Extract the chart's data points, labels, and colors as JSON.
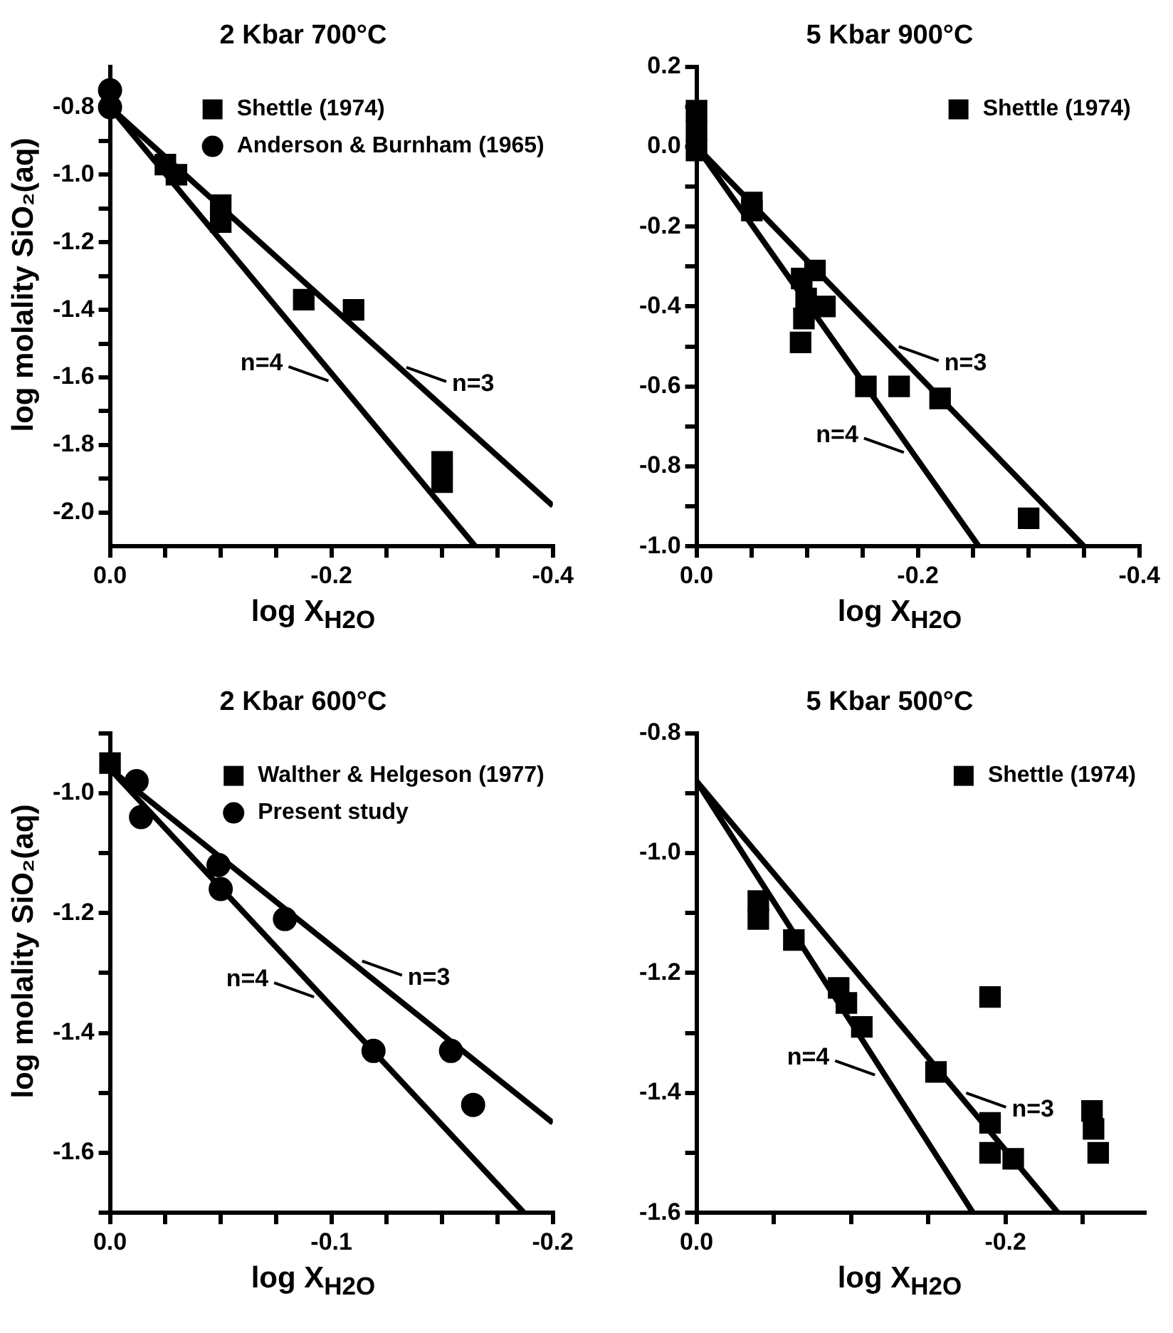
{
  "chart_data": [
    {
      "type": "scatter",
      "title": "2 Kbar 700°C",
      "xlabel": "log X$_{H2O}$",
      "ylabel": "log molality SiO₂(aq)",
      "legend": "top right",
      "xlim": [
        0,
        -0.4
      ],
      "ylim": [
        -2.1,
        -0.68
      ],
      "xticks": [
        {
          "value": 0,
          "label": "0.0"
        },
        {
          "value": -0.05,
          "label": null
        },
        {
          "value": -0.1,
          "label": null
        },
        {
          "value": -0.15,
          "label": null
        },
        -0.2,
        {
          "value": -0.25,
          "label": null
        },
        {
          "value": -0.3,
          "label": null
        },
        {
          "value": -0.35,
          "label": null
        },
        -0.4
      ],
      "yticks": [
        -0.8,
        {
          "value": -0.9,
          "label": null
        },
        {
          "value": -1.0,
          "label": "-1.0"
        },
        {
          "value": -1.1,
          "label": null
        },
        -1.2,
        {
          "value": -1.3,
          "label": null
        },
        -1.4,
        {
          "value": -1.5,
          "label": null
        },
        -1.6,
        {
          "value": -1.7,
          "label": null
        },
        -1.8,
        {
          "value": -1.9,
          "label": null
        },
        {
          "value": -2.0,
          "label": "-2.0"
        }
      ],
      "series": [
        {
          "type": "scatter",
          "name": "Shettle (1974)",
          "marker": "square",
          "color": "#000000",
          "x": [
            -0.05,
            -0.06,
            -0.1,
            -0.1,
            -0.175,
            -0.22,
            -0.3,
            -0.3
          ],
          "values": [
            -0.97,
            -1.0,
            -1.09,
            -1.14,
            -1.37,
            -1.4,
            -1.85,
            -1.91
          ]
        },
        {
          "type": "scatter",
          "name": "Anderson & Burnham (1965)",
          "marker": "circle",
          "color": "#000000",
          "x": [
            0,
            0
          ],
          "values": [
            -0.75,
            -0.8
          ]
        },
        {
          "type": "line",
          "color": "#000000",
          "x": [
            0,
            -0.4
          ],
          "values": [
            -0.8,
            -1.98
          ]
        },
        {
          "type": "line",
          "color": "#000000",
          "x": [
            0,
            -0.33
          ],
          "values": [
            -0.8,
            -2.1
          ]
        }
      ],
      "annotations": [
        {
          "text": "n=3",
          "x": -0.26,
          "y": -1.57
        },
        {
          "text": "n=4",
          "x": -0.205,
          "y": -1.61
        }
      ]
    },
    {
      "type": "scatter",
      "title": "5 Kbar 900°C",
      "xlabel": "log X$_{H2O}$",
      "legend": "top right",
      "xlim": [
        0,
        -0.4
      ],
      "ylim": [
        -1.0,
        0.2
      ],
      "xticks": [
        {
          "value": 0,
          "label": "0.0"
        },
        {
          "value": -0.05,
          "label": null
        },
        {
          "value": -0.1,
          "label": null
        },
        {
          "value": -0.15,
          "label": null
        },
        -0.2,
        {
          "value": -0.25,
          "label": null
        },
        {
          "value": -0.3,
          "label": null
        },
        {
          "value": -0.35,
          "label": null
        },
        -0.4
      ],
      "yticks": [
        0.2,
        {
          "value": 0.1,
          "label": null
        },
        {
          "value": 0,
          "label": "0.0"
        },
        {
          "value": -0.1,
          "label": null
        },
        -0.2,
        {
          "value": -0.3,
          "label": null
        },
        -0.4,
        {
          "value": -0.5,
          "label": null
        },
        -0.6,
        {
          "value": -0.7,
          "label": null
        },
        -0.8,
        {
          "value": -0.9,
          "label": null
        },
        {
          "value": -1.0,
          "label": "-1.0"
        }
      ],
      "series": [
        {
          "type": "scatter",
          "name": "Shettle (1974)",
          "marker": "square",
          "color": "#000000",
          "x": [
            0,
            0,
            0,
            -0.05,
            -0.05,
            -0.095,
            -0.107,
            -0.099,
            -0.116,
            -0.097,
            -0.094,
            -0.153,
            -0.183,
            -0.22,
            -0.3
          ],
          "values": [
            0.09,
            0.04,
            -0.01,
            -0.14,
            -0.16,
            -0.33,
            -0.31,
            -0.38,
            -0.4,
            -0.43,
            -0.49,
            -0.6,
            -0.6,
            -0.63,
            -0.93
          ]
        },
        {
          "type": "line",
          "color": "#000000",
          "x": [
            0,
            -0.35
          ],
          "values": [
            0,
            -1.0
          ]
        },
        {
          "type": "line",
          "color": "#000000",
          "x": [
            0,
            -0.255
          ],
          "values": [
            0,
            -1.0
          ]
        }
      ],
      "annotations": [
        {
          "text": "n=3",
          "x": -0.175,
          "y": -0.5
        },
        {
          "text": "n=4",
          "x": -0.195,
          "y": -0.765
        }
      ]
    },
    {
      "type": "scatter",
      "title": "2 Kbar 600°C",
      "xlabel": "log X$_{H2O}$",
      "ylabel": "log molality SiO₂(aq)",
      "legend": "top right",
      "xlim": [
        0,
        -0.2
      ],
      "ylim": [
        -1.7,
        -0.9
      ],
      "xticks": [
        {
          "value": 0,
          "label": "0.0"
        },
        {
          "value": -0.025,
          "label": null
        },
        {
          "value": -0.05,
          "label": null
        },
        {
          "value": -0.075,
          "label": null
        },
        -0.1,
        {
          "value": -0.125,
          "label": null
        },
        {
          "value": -0.15,
          "label": null
        },
        {
          "value": -0.175,
          "label": null
        },
        -0.2
      ],
      "yticks": [
        {
          "value": -0.9,
          "label": null
        },
        {
          "value": -1.0,
          "label": "-1.0"
        },
        {
          "value": -1.1,
          "label": null
        },
        -1.2,
        {
          "value": -1.3,
          "label": null
        },
        -1.4,
        {
          "value": -1.5,
          "label": null
        },
        -1.6,
        {
          "value": -1.7,
          "label": null
        }
      ],
      "series": [
        {
          "type": "scatter",
          "name": "Walther & Helgeson (1977)",
          "marker": "square",
          "color": "#000000",
          "x": [
            0
          ],
          "values": [
            -0.95
          ]
        },
        {
          "type": "scatter",
          "name": "Present study",
          "marker": "circle",
          "color": "#000000",
          "x": [
            -0.012,
            -0.014,
            -0.049,
            -0.05,
            -0.079,
            -0.119,
            -0.154,
            -0.164
          ],
          "values": [
            -0.98,
            -1.04,
            -1.12,
            -1.16,
            -1.21,
            -1.43,
            -1.43,
            -1.52
          ]
        },
        {
          "type": "line",
          "color": "#000000",
          "x": [
            0,
            -0.2
          ],
          "values": [
            -0.96,
            -1.55
          ]
        },
        {
          "type": "line",
          "color": "#000000",
          "x": [
            0,
            -0.187
          ],
          "values": [
            -0.96,
            -1.7
          ]
        }
      ],
      "annotations": [
        {
          "text": "n=3",
          "x": -0.11,
          "y": -1.28
        },
        {
          "text": "n=4",
          "x": -0.096,
          "y": -1.34
        }
      ]
    },
    {
      "type": "scatter",
      "title": "5 Kbar 500°C",
      "xlabel": "log X$_{H2O}$",
      "legend": "top right",
      "xlim": [
        0,
        -0.29
      ],
      "ylim": [
        -1.6,
        -0.8
      ],
      "xticks": [
        {
          "value": 0,
          "label": "0.0"
        },
        {
          "value": -0.05,
          "label": null
        },
        {
          "value": -0.1,
          "label": null
        },
        {
          "value": -0.15,
          "label": null
        },
        -0.2,
        {
          "value": -0.25,
          "label": null
        }
      ],
      "yticks": [
        -0.8,
        {
          "value": -0.9,
          "label": null
        },
        {
          "value": -1.0,
          "label": "-1.0"
        },
        {
          "value": -1.1,
          "label": null
        },
        -1.2,
        {
          "value": -1.3,
          "label": null
        },
        -1.4,
        {
          "value": -1.5,
          "label": null
        },
        -1.6
      ],
      "series": [
        {
          "type": "scatter",
          "name": "Shettle (1974)",
          "marker": "square",
          "color": "#000000",
          "x": [
            -0.04,
            -0.04,
            -0.063,
            -0.092,
            -0.097,
            -0.107,
            -0.155,
            -0.19,
            -0.19,
            -0.19,
            -0.205,
            -0.256,
            -0.257,
            -0.26
          ],
          "values": [
            -1.08,
            -1.11,
            -1.145,
            -1.225,
            -1.25,
            -1.29,
            -1.365,
            -1.24,
            -1.45,
            -1.5,
            -1.51,
            -1.43,
            -1.46,
            -1.5
          ]
        },
        {
          "type": "line",
          "color": "#000000",
          "x": [
            0,
            -0.234
          ],
          "values": [
            -0.88,
            -1.6
          ]
        },
        {
          "type": "line",
          "color": "#000000",
          "x": [
            0,
            -0.179
          ],
          "values": [
            -0.88,
            -1.6
          ]
        }
      ],
      "annotations": [
        {
          "text": "n=3",
          "x": -0.169,
          "y": -1.4
        },
        {
          "text": "n=4",
          "x": -0.121,
          "y": -1.37
        }
      ]
    }
  ]
}
